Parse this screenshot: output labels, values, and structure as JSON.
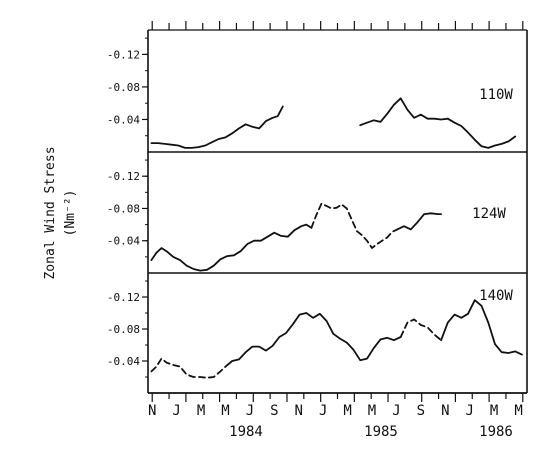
{
  "chart_data": {
    "type": "line",
    "ylabel_lines": [
      "Zonal Wind Stress",
      "(Nm⁻²)"
    ],
    "x_tick_labels": [
      "N",
      "J",
      "M",
      "M",
      "J",
      "S",
      "N",
      "J",
      "M",
      "M",
      "J",
      "S",
      "N",
      "J",
      "M",
      "M"
    ],
    "year_labels": [
      "1984",
      "1985",
      "1986"
    ],
    "ylim": [
      0,
      -0.15
    ],
    "y_ticks": [
      -0.04,
      -0.08,
      -0.12
    ],
    "y_tick_labels": [
      "-0.04",
      "-0.08",
      "-0.12"
    ],
    "panels": [
      {
        "label": "110W",
        "segments": [
          {
            "style": "solid",
            "points": [
              [
                0.2,
                -0.011
              ],
              [
                0.6,
                -0.011
              ],
              [
                1.0,
                -0.01
              ],
              [
                1.4,
                -0.009
              ],
              [
                1.8,
                -0.008
              ],
              [
                2.2,
                -0.005
              ],
              [
                2.6,
                -0.005
              ],
              [
                3.0,
                -0.006
              ],
              [
                3.4,
                -0.008
              ],
              [
                3.8,
                -0.012
              ],
              [
                4.2,
                -0.016
              ],
              [
                4.6,
                -0.018
              ],
              [
                5.0,
                -0.023
              ],
              [
                5.4,
                -0.029
              ],
              [
                5.8,
                -0.034
              ],
              [
                6.2,
                -0.031
              ],
              [
                6.6,
                -0.029
              ],
              [
                7.0,
                -0.038
              ],
              [
                7.4,
                -0.042
              ],
              [
                7.7,
                -0.044
              ],
              [
                8.0,
                -0.056
              ]
            ]
          },
          {
            "style": "solid",
            "points": [
              [
                12.6,
                -0.033
              ],
              [
                13.0,
                -0.036
              ],
              [
                13.4,
                -0.039
              ],
              [
                13.8,
                -0.037
              ],
              [
                14.2,
                -0.047
              ],
              [
                14.6,
                -0.058
              ],
              [
                15.0,
                -0.066
              ],
              [
                15.4,
                -0.052
              ],
              [
                15.8,
                -0.042
              ],
              [
                16.2,
                -0.046
              ],
              [
                16.6,
                -0.041
              ],
              [
                17.0,
                -0.041
              ],
              [
                17.4,
                -0.04
              ],
              [
                17.8,
                -0.041
              ],
              [
                18.2,
                -0.036
              ],
              [
                18.6,
                -0.032
              ],
              [
                19.0,
                -0.024
              ],
              [
                19.4,
                -0.015
              ],
              [
                19.8,
                -0.007
              ],
              [
                20.2,
                -0.005
              ],
              [
                20.6,
                -0.008
              ],
              [
                21.0,
                -0.01
              ],
              [
                21.4,
                -0.013
              ],
              [
                21.8,
                -0.019
              ]
            ]
          }
        ]
      },
      {
        "label": "124W",
        "segments": [
          {
            "style": "solid",
            "points": [
              [
                0.2,
                -0.016
              ],
              [
                0.5,
                -0.025
              ],
              [
                0.8,
                -0.031
              ],
              [
                1.1,
                -0.027
              ],
              [
                1.5,
                -0.02
              ],
              [
                1.9,
                -0.016
              ],
              [
                2.3,
                -0.009
              ],
              [
                2.7,
                -0.005
              ],
              [
                3.1,
                -0.003
              ],
              [
                3.5,
                -0.004
              ],
              [
                3.9,
                -0.009
              ],
              [
                4.3,
                -0.017
              ],
              [
                4.7,
                -0.021
              ],
              [
                5.1,
                -0.022
              ],
              [
                5.5,
                -0.027
              ],
              [
                5.9,
                -0.036
              ],
              [
                6.3,
                -0.04
              ],
              [
                6.7,
                -0.04
              ],
              [
                7.1,
                -0.045
              ],
              [
                7.5,
                -0.05
              ],
              [
                7.9,
                -0.046
              ],
              [
                8.3,
                -0.045
              ],
              [
                8.7,
                -0.053
              ],
              [
                9.1,
                -0.058
              ],
              [
                9.4,
                -0.06
              ],
              [
                9.7,
                -0.056
              ]
            ]
          },
          {
            "style": "dashed",
            "points": [
              [
                9.7,
                -0.056
              ],
              [
                10.0,
                -0.072
              ],
              [
                10.3,
                -0.086
              ],
              [
                10.6,
                -0.083
              ],
              [
                10.9,
                -0.08
              ],
              [
                11.2,
                -0.081
              ],
              [
                11.5,
                -0.085
              ],
              [
                11.8,
                -0.08
              ],
              [
                12.1,
                -0.066
              ],
              [
                12.4,
                -0.052
              ],
              [
                12.7,
                -0.047
              ],
              [
                13.0,
                -0.04
              ],
              [
                13.3,
                -0.031
              ],
              [
                13.6,
                -0.036
              ],
              [
                13.9,
                -0.04
              ],
              [
                14.2,
                -0.044
              ],
              [
                14.5,
                -0.051
              ],
              [
                14.8,
                -0.054
              ]
            ]
          },
          {
            "style": "solid",
            "points": [
              [
                14.8,
                -0.054
              ],
              [
                15.2,
                -0.058
              ],
              [
                15.6,
                -0.054
              ],
              [
                16.0,
                -0.063
              ],
              [
                16.4,
                -0.073
              ],
              [
                16.8,
                -0.074
              ],
              [
                17.2,
                -0.073
              ],
              [
                17.4,
                -0.073
              ]
            ]
          }
        ]
      },
      {
        "label": "140W",
        "segments": [
          {
            "style": "dashed",
            "points": [
              [
                0.2,
                -0.027
              ],
              [
                0.5,
                -0.033
              ],
              [
                0.8,
                -0.043
              ],
              [
                1.1,
                -0.038
              ],
              [
                1.5,
                -0.035
              ],
              [
                1.9,
                -0.033
              ],
              [
                2.3,
                -0.023
              ],
              [
                2.7,
                -0.02
              ],
              [
                3.1,
                -0.02
              ],
              [
                3.5,
                -0.019
              ],
              [
                3.9,
                -0.02
              ],
              [
                4.3,
                -0.027
              ],
              [
                4.6,
                -0.033
              ]
            ]
          },
          {
            "style": "solid",
            "points": [
              [
                4.6,
                -0.033
              ],
              [
                5.0,
                -0.04
              ],
              [
                5.4,
                -0.042
              ],
              [
                5.8,
                -0.051
              ],
              [
                6.2,
                -0.058
              ],
              [
                6.6,
                -0.058
              ],
              [
                7.0,
                -0.053
              ],
              [
                7.4,
                -0.059
              ],
              [
                7.8,
                -0.07
              ],
              [
                8.2,
                -0.075
              ],
              [
                8.6,
                -0.086
              ],
              [
                9.0,
                -0.098
              ],
              [
                9.4,
                -0.1
              ],
              [
                9.8,
                -0.094
              ],
              [
                10.2,
                -0.099
              ],
              [
                10.6,
                -0.09
              ],
              [
                11.0,
                -0.074
              ],
              [
                11.4,
                -0.068
              ],
              [
                11.8,
                -0.063
              ],
              [
                12.2,
                -0.054
              ],
              [
                12.6,
                -0.041
              ],
              [
                13.0,
                -0.043
              ],
              [
                13.4,
                -0.056
              ],
              [
                13.8,
                -0.067
              ],
              [
                14.2,
                -0.069
              ],
              [
                14.6,
                -0.066
              ],
              [
                15.0,
                -0.07
              ]
            ]
          },
          {
            "style": "dashed",
            "points": [
              [
                15.0,
                -0.07
              ],
              [
                15.4,
                -0.088
              ],
              [
                15.8,
                -0.092
              ],
              [
                16.2,
                -0.085
              ],
              [
                16.6,
                -0.082
              ],
              [
                17.0,
                -0.073
              ],
              [
                17.4,
                -0.066
              ]
            ]
          },
          {
            "style": "solid",
            "points": [
              [
                17.4,
                -0.066
              ],
              [
                17.8,
                -0.088
              ],
              [
                18.2,
                -0.098
              ],
              [
                18.6,
                -0.094
              ],
              [
                19.0,
                -0.099
              ],
              [
                19.4,
                -0.116
              ],
              [
                19.8,
                -0.109
              ],
              [
                20.2,
                -0.088
              ],
              [
                20.6,
                -0.061
              ],
              [
                21.0,
                -0.051
              ],
              [
                21.4,
                -0.05
              ],
              [
                21.8,
                -0.052
              ],
              [
                22.2,
                -0.048
              ]
            ]
          }
        ]
      }
    ]
  }
}
